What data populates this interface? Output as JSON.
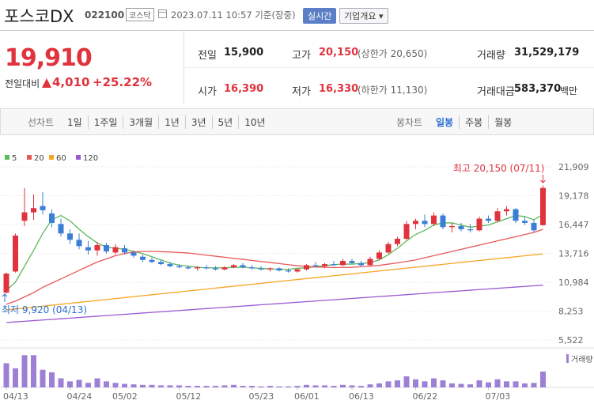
{
  "header": {
    "name": "포스코DX",
    "code": "022100",
    "market": "코스닥",
    "timestamp": "2023.07.11 10:57 기준(장중)",
    "realtime_button": "실시간",
    "company_button": "기업개요"
  },
  "quote": {
    "price": "19,910",
    "change_label": "전일대비",
    "change": "4,010",
    "change_rate": "+25.22%",
    "stats": [
      {
        "label": "전일",
        "value": "15,900"
      },
      {
        "label": "고가",
        "value": "20,150",
        "note": "(상한가 20,650)"
      },
      {
        "label": "거래량",
        "value": "31,529,179"
      },
      {
        "label": "시가",
        "value": "16,390"
      },
      {
        "label": "저가",
        "value": "16,330",
        "note": "(하한가 11,130)"
      },
      {
        "label": "거래대금",
        "value": "583,370",
        "unit": "백만"
      }
    ]
  },
  "tabs": {
    "line_chart": "선차트",
    "periods": [
      "1일",
      "1주일",
      "3개월",
      "1년",
      "3년",
      "5년",
      "10년"
    ],
    "candle_chart": "봉차트",
    "candle_periods": [
      "일봉",
      "주봉",
      "월봉"
    ]
  },
  "chart_data": {
    "type": "candlestick",
    "categories": [
      "04/13",
      null,
      null,
      null,
      null,
      null,
      null,
      "04/24",
      null,
      null,
      null,
      null,
      "05/02",
      null,
      null,
      null,
      null,
      null,
      null,
      "05/12",
      null,
      null,
      null,
      null,
      null,
      null,
      null,
      "05/23",
      null,
      null,
      null,
      null,
      "06/01",
      null,
      null,
      null,
      null,
      null,
      "06/13",
      null,
      null,
      null,
      null,
      null,
      null,
      "06/22",
      null,
      null,
      null,
      null,
      null,
      null,
      null,
      "07/03",
      null,
      null,
      null,
      null,
      null,
      null
    ],
    "open": [
      10000,
      12000,
      16800,
      17600,
      18200,
      17500,
      16500,
      15600,
      15000,
      14300,
      14000,
      14500,
      13800,
      14200,
      13800,
      13400,
      13100,
      12900,
      12700,
      12500,
      12400,
      12300,
      12400,
      12300,
      12200,
      12400,
      12600,
      12400,
      12300,
      12200,
      12300,
      12100,
      12000,
      12200,
      12600,
      12500,
      12700,
      12600,
      13000,
      12800,
      12600,
      13200,
      13800,
      14600,
      15100,
      16500,
      16800,
      16500,
      17300,
      16200,
      16300,
      16000,
      15900,
      17000,
      16800,
      17700,
      17900,
      16800,
      16600,
      16390
    ],
    "high": [
      11900,
      15600,
      19900,
      19300,
      19500,
      17900,
      17000,
      16000,
      15600,
      14900,
      14800,
      14700,
      14600,
      14500,
      14000,
      13600,
      13300,
      13100,
      12900,
      12700,
      12600,
      12500,
      12600,
      12500,
      12500,
      12700,
      12800,
      12600,
      12500,
      12400,
      12400,
      12300,
      12300,
      12700,
      12900,
      12800,
      13000,
      13200,
      13200,
      13000,
      13400,
      14000,
      14800,
      15300,
      16800,
      17000,
      17400,
      17600,
      17500,
      16600,
      16600,
      16500,
      17200,
      17300,
      18000,
      18200,
      18000,
      17200,
      16900,
      20150
    ],
    "low": [
      9920,
      11900,
      16300,
      16900,
      17400,
      16200,
      15300,
      14600,
      14100,
      13600,
      13500,
      13700,
      13600,
      13600,
      13300,
      12900,
      12800,
      12600,
      12400,
      12300,
      12200,
      12100,
      12200,
      12100,
      12100,
      12300,
      12300,
      12200,
      12100,
      12000,
      12000,
      11900,
      11900,
      12100,
      12400,
      12300,
      12500,
      12500,
      12700,
      12500,
      12500,
      13100,
      13700,
      14400,
      15000,
      16000,
      16200,
      16300,
      16000,
      15700,
      15800,
      15700,
      15800,
      16600,
      16700,
      17300,
      16600,
      16400,
      15700,
      16330
    ],
    "close": [
      11800,
      15400,
      17600,
      18000,
      17800,
      16600,
      15600,
      15000,
      14400,
      14000,
      14500,
      13900,
      14300,
      13800,
      13500,
      13100,
      12900,
      12700,
      12500,
      12400,
      12300,
      12400,
      12300,
      12200,
      12400,
      12600,
      12400,
      12300,
      12200,
      12300,
      12100,
      12000,
      12200,
      12600,
      12500,
      12700,
      12600,
      13000,
      12800,
      12600,
      13200,
      13800,
      14600,
      15100,
      16500,
      16800,
      16500,
      17300,
      16200,
      16300,
      16000,
      15900,
      17000,
      16800,
      17700,
      17900,
      16800,
      16600,
      15900,
      19910
    ],
    "up_color": "#e0333e",
    "down_color": "#3a7fd5",
    "ylim": [
      5522,
      21909
    ],
    "yticks": [
      {
        "value": 21909,
        "label": "21,909"
      },
      {
        "value": 19178,
        "label": "19,178"
      },
      {
        "value": 16447,
        "label": "16,447"
      },
      {
        "value": 13716,
        "label": "13,716"
      },
      {
        "value": 10984,
        "label": "10,984"
      },
      {
        "value": 8253,
        "label": "8,253"
      },
      {
        "value": 5522,
        "label": "5,522"
      }
    ],
    "grid": true,
    "series": [
      {
        "name": "5",
        "color": "#5cb85c",
        "values": [
          10200,
          11000,
          12500,
          14000,
          15600,
          16900,
          17300,
          16800,
          16000,
          15300,
          14700,
          14300,
          14200,
          14100,
          13900,
          13700,
          13400,
          13100,
          12800,
          12600,
          12500,
          12400,
          12350,
          12350,
          12350,
          12400,
          12400,
          12350,
          12300,
          12250,
          12200,
          12200,
          12300,
          12350,
          12450,
          12550,
          12650,
          12700,
          12700,
          12750,
          12850,
          13100,
          13600,
          14200,
          14900,
          15500,
          15900,
          16400,
          16600,
          16600,
          16400,
          16200,
          16300,
          16400,
          16700,
          17000,
          17300,
          17200,
          16900,
          17400
        ]
      },
      {
        "name": "20",
        "color": "#e8585a",
        "values": [
          8900,
          9200,
          9600,
          10000,
          10500,
          10900,
          11300,
          11700,
          12100,
          12500,
          12900,
          13200,
          13500,
          13700,
          13850,
          13900,
          13900,
          13880,
          13850,
          13800,
          13750,
          13650,
          13550,
          13450,
          13350,
          13250,
          13150,
          13050,
          12950,
          12850,
          12750,
          12650,
          12550,
          12480,
          12430,
          12400,
          12380,
          12380,
          12400,
          12450,
          12500,
          12580,
          12700,
          12820,
          12950,
          13100,
          13300,
          13500,
          13700,
          13900,
          14100,
          14300,
          14500,
          14700,
          14900,
          15100,
          15300,
          15500,
          15700,
          16000
        ]
      },
      {
        "name": "60",
        "color": "#f5a623",
        "values": [
          8360,
          8450,
          8540,
          8630,
          8720,
          8810,
          8900,
          8990,
          9080,
          9170,
          9260,
          9350,
          9440,
          9530,
          9620,
          9710,
          9800,
          9890,
          9980,
          10070,
          10160,
          10250,
          10340,
          10430,
          10520,
          10610,
          10700,
          10790,
          10880,
          10970,
          11060,
          11150,
          11240,
          11330,
          11420,
          11510,
          11600,
          11690,
          11780,
          11870,
          11960,
          12050,
          12140,
          12230,
          12320,
          12410,
          12500,
          12590,
          12680,
          12770,
          12860,
          12950,
          13040,
          13130,
          13220,
          13310,
          13400,
          13490,
          13580,
          13670
        ]
      },
      {
        "name": "120",
        "color": "#9b59d0",
        "values": [
          7170,
          7230,
          7290,
          7350,
          7410,
          7470,
          7530,
          7590,
          7650,
          7710,
          7770,
          7830,
          7890,
          7950,
          8010,
          8070,
          8130,
          8190,
          8250,
          8310,
          8370,
          8430,
          8490,
          8550,
          8610,
          8670,
          8730,
          8790,
          8850,
          8910,
          8970,
          9030,
          9090,
          9150,
          9210,
          9270,
          9330,
          9390,
          9450,
          9510,
          9570,
          9630,
          9690,
          9750,
          9810,
          9870,
          9930,
          9990,
          10050,
          10110,
          10170,
          10230,
          10290,
          10350,
          10410,
          10470,
          10530,
          10590,
          10650,
          10710
        ]
      }
    ],
    "volume": {
      "name": "거래량",
      "color": "#9d7fd6",
      "ylim": [
        0,
        66000000
      ],
      "values": [
        48000000,
        38000000,
        64000000,
        64000000,
        35000000,
        30000000,
        18000000,
        12000000,
        15000000,
        9000000,
        18000000,
        12000000,
        9000000,
        7000000,
        6000000,
        5000000,
        5000000,
        4000000,
        4000000,
        4000000,
        3000000,
        3000000,
        3000000,
        3000000,
        4000000,
        5000000,
        3000000,
        3000000,
        2000000,
        3000000,
        2000000,
        2000000,
        3000000,
        5000000,
        4000000,
        4000000,
        3000000,
        5000000,
        4000000,
        3000000,
        6000000,
        8000000,
        12000000,
        14000000,
        22000000,
        16000000,
        12000000,
        18000000,
        14000000,
        8000000,
        7000000,
        6000000,
        14000000,
        10000000,
        16000000,
        12000000,
        12000000,
        8000000,
        9000000,
        31529179
      ]
    },
    "annotations": {
      "high": "최고 20,150 (07/11)",
      "low": "최저 9,920 (04/13)"
    }
  }
}
